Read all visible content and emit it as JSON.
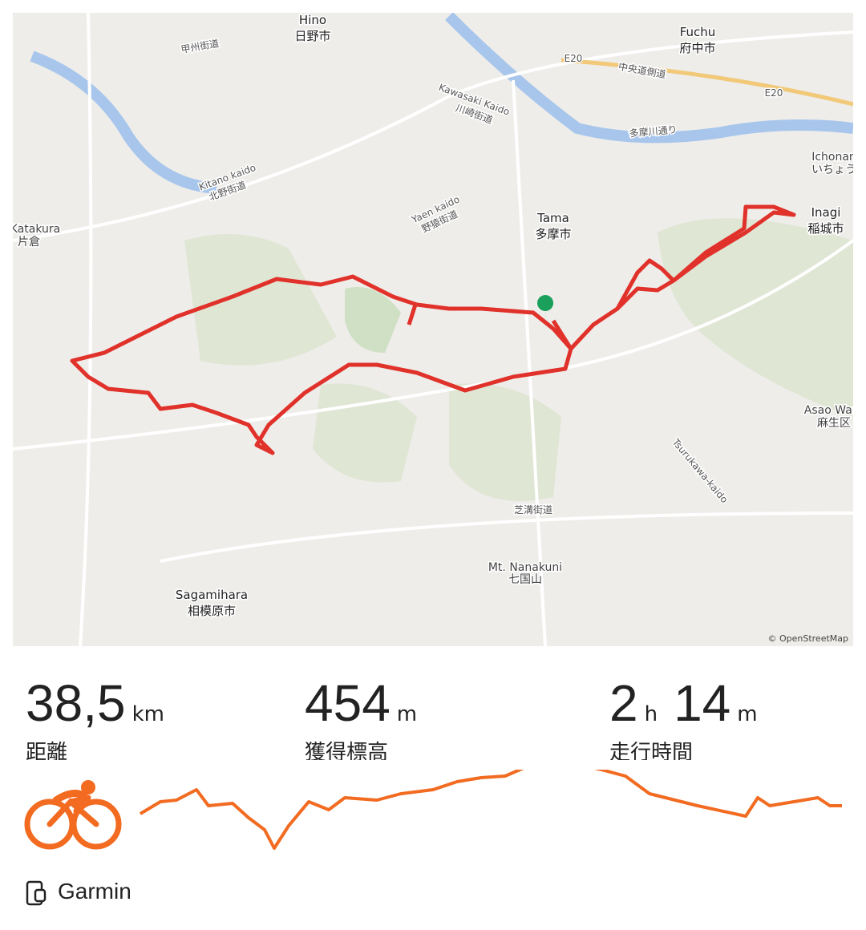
{
  "map": {
    "labels": [
      "Hino",
      "日野市",
      "Fuchu",
      "府中市",
      "Tama",
      "多摩市",
      "Inagi",
      "稲城市",
      "Sagamihara",
      "相模原市",
      "Mt. Nanakuni",
      "七国山",
      "Asao Ward",
      "麻生区",
      "Katakura",
      "片倉",
      "Ichonan",
      "いちょう",
      "Kawasaki Kaido",
      "川崎街道",
      "Yaen kaido",
      "野猿街道",
      "Tsurukawa-kaido",
      "芝溝街道",
      "甲州街道",
      "中央道側道",
      "多摩川通り",
      "Kitano kaido",
      "北野街道",
      "E20",
      "E20"
    ],
    "attribution": "© OpenStreetMap"
  },
  "stats": {
    "distance": {
      "value": "38,5",
      "unit": "km",
      "label": "距離"
    },
    "elevation": {
      "value": "454",
      "unit": "m",
      "label": "獲得標高"
    },
    "time": {
      "hours": "2",
      "hours_unit": "h",
      "minutes": "14",
      "minutes_unit": "m",
      "label": "走行時間"
    }
  },
  "source": "Garmin"
}
